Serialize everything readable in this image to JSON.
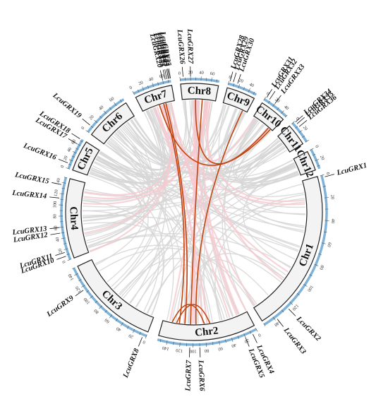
{
  "chromosomes": [
    {
      "id": "Chr1",
      "label": "Chr1",
      "length": 150,
      "ticks": [
        0,
        20,
        40,
        60,
        80,
        100,
        120,
        140
      ]
    },
    {
      "id": "Chr2",
      "label": "Chr2",
      "length": 155,
      "ticks": [
        0,
        20,
        40,
        60,
        80,
        100,
        120,
        140
      ]
    },
    {
      "id": "Chr3",
      "label": "Chr3",
      "length": 150,
      "ticks": [
        0,
        20,
        40,
        60,
        80,
        100,
        120,
        140
      ]
    },
    {
      "id": "Chr4",
      "label": "Chr4",
      "length": 150,
      "ticks": [
        0,
        20,
        40,
        60,
        80,
        100,
        120,
        140
      ]
    },
    {
      "id": "Chr5",
      "label": "Chr5",
      "length": 75,
      "ticks": [
        0,
        20,
        40,
        60
      ]
    },
    {
      "id": "Chr6",
      "label": "Chr6",
      "length": 75,
      "ticks": [
        0,
        20,
        40,
        60
      ]
    },
    {
      "id": "Chr7",
      "label": "Chr7",
      "length": 75,
      "ticks": [
        0,
        20,
        40,
        60
      ]
    },
    {
      "id": "Chr8",
      "label": "Chr8",
      "length": 75,
      "ticks": [
        0,
        20,
        40,
        60
      ]
    },
    {
      "id": "Chr9",
      "label": "Chr9",
      "length": 55,
      "ticks": [
        0,
        20,
        40
      ]
    },
    {
      "id": "Chr10",
      "label": "Chr10",
      "length": 50,
      "ticks": [
        0,
        20,
        40
      ]
    },
    {
      "id": "Chr11",
      "label": "Chr11",
      "length": 40,
      "ticks": [
        0,
        20
      ]
    },
    {
      "id": "Chr12",
      "label": "Chr12",
      "length": 35,
      "ticks": [
        0,
        20
      ]
    }
  ],
  "genes": [
    {
      "name": "LcuGRX1",
      "chr": "Chr1",
      "pos": 2
    },
    {
      "name": "LcuGRX2",
      "chr": "Chr1",
      "pos": 125
    },
    {
      "name": "LcuGRX3",
      "chr": "Chr1",
      "pos": 138
    },
    {
      "name": "LcuGRX4",
      "chr": "Chr2",
      "pos": 8
    },
    {
      "name": "LcuGRX5",
      "chr": "Chr2",
      "pos": 20
    },
    {
      "name": "LcuGRX6",
      "chr": "Chr2",
      "pos": 90
    },
    {
      "name": "LcuGRX7",
      "chr": "Chr2",
      "pos": 105
    },
    {
      "name": "LcuGRX8",
      "chr": "Chr3",
      "pos": 5
    },
    {
      "name": "LcuGRX9",
      "chr": "Chr3",
      "pos": 115
    },
    {
      "name": "LcuGRX10",
      "chr": "Chr4",
      "pos": 8
    },
    {
      "name": "LcuGRX11",
      "chr": "Chr4",
      "pos": 15
    },
    {
      "name": "LcuGRX12",
      "chr": "Chr4",
      "pos": 50
    },
    {
      "name": "LcuGRX13",
      "chr": "Chr4",
      "pos": 60
    },
    {
      "name": "LcuGRX14",
      "chr": "Chr4",
      "pos": 112
    },
    {
      "name": "LcuGRX15",
      "chr": "Chr4",
      "pos": 136
    },
    {
      "name": "LcuGRX16",
      "chr": "Chr5",
      "pos": 12
    },
    {
      "name": "LcuGRX17",
      "chr": "Chr5",
      "pos": 60
    },
    {
      "name": "LcuGRX18",
      "chr": "Chr5",
      "pos": 73
    },
    {
      "name": "LcuGRX19",
      "chr": "Chr6",
      "pos": 10
    },
    {
      "name": "LcuGRX20",
      "chr": "Chr7",
      "pos": 60
    },
    {
      "name": "LcuGRX21",
      "chr": "Chr7",
      "pos": 65
    },
    {
      "name": "LcuGRX22",
      "chr": "Chr7",
      "pos": 68
    },
    {
      "name": "LcuGRX23",
      "chr": "Chr7",
      "pos": 71
    },
    {
      "name": "LcuGRX24",
      "chr": "Chr7",
      "pos": 73
    },
    {
      "name": "LcuGRX25",
      "chr": "Chr7",
      "pos": 75
    },
    {
      "name": "LcuGRX26",
      "chr": "Chr8",
      "pos": 6
    },
    {
      "name": "LcuGRX27",
      "chr": "Chr8",
      "pos": 20
    },
    {
      "name": "LcuGRX28",
      "chr": "Chr9",
      "pos": 2
    },
    {
      "name": "LcuGRX29",
      "chr": "Chr9",
      "pos": 8
    },
    {
      "name": "LcuGRX30",
      "chr": "Chr9",
      "pos": 16
    },
    {
      "name": "LcuGRX31",
      "chr": "Chr10",
      "pos": 2
    },
    {
      "name": "LcuGRX32",
      "chr": "Chr10",
      "pos": 8
    },
    {
      "name": "LcuGRX33",
      "chr": "Chr10",
      "pos": 20
    },
    {
      "name": "LcuGRX34",
      "chr": "Chr11",
      "pos": 2
    },
    {
      "name": "LcuGRX35",
      "chr": "Chr11",
      "pos": 6
    },
    {
      "name": "LcuGRX36",
      "chr": "Chr11",
      "pos": 12
    }
  ],
  "duplication_links": [
    {
      "from": {
        "chr": "Chr7",
        "pos": 40
      },
      "to": {
        "chr": "Chr10",
        "pos": 45
      }
    },
    {
      "from": {
        "chr": "Chr7",
        "pos": 50
      },
      "to": {
        "chr": "Chr2",
        "pos": 125
      }
    },
    {
      "from": {
        "chr": "Chr7",
        "pos": 55
      },
      "to": {
        "chr": "Chr2",
        "pos": 115
      }
    },
    {
      "from": {
        "chr": "Chr8",
        "pos": 45
      },
      "to": {
        "chr": "Chr2",
        "pos": 105
      }
    },
    {
      "from": {
        "chr": "Chr9",
        "pos": 45
      },
      "to": {
        "chr": "Chr2",
        "pos": 95
      }
    },
    {
      "from": {
        "chr": "Chr8",
        "pos": 30
      },
      "to": {
        "chr": "Chr10",
        "pos": 40
      }
    },
    {
      "from": {
        "chr": "Chr2",
        "pos": 70
      },
      "to": {
        "chr": "Chr2",
        "pos": 130
      }
    },
    {
      "from": {
        "chr": "Chr2",
        "pos": 80
      },
      "to": {
        "chr": "Chr2",
        "pos": 138
      }
    }
  ],
  "colors": {
    "duplication": "#c1440e",
    "synteny_highlight": "#f6c9cf",
    "synteny_background": "#d6d6d6",
    "scale": "#7fb2d8"
  }
}
